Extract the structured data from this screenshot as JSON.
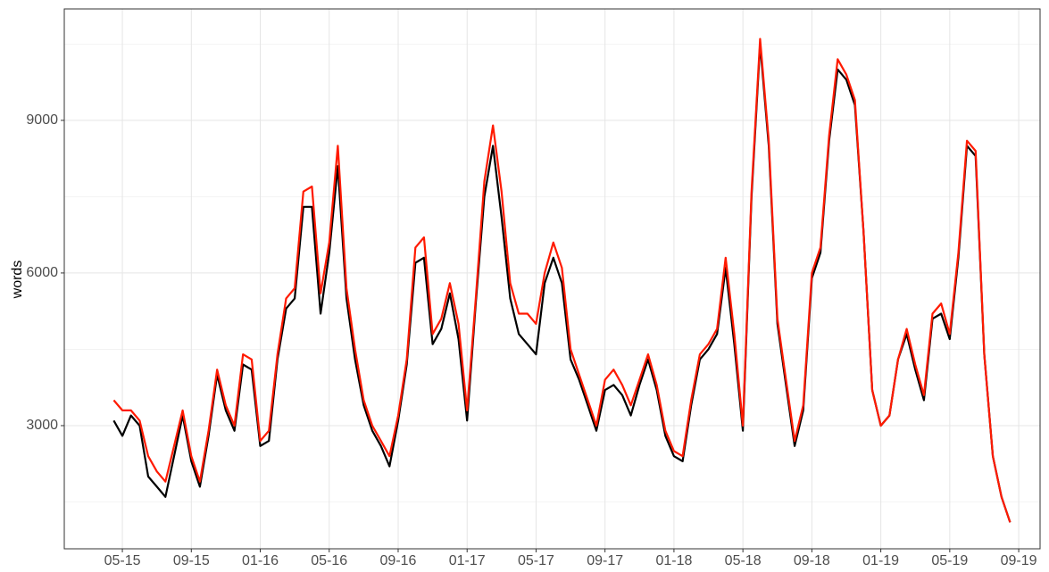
{
  "chart_data": {
    "type": "line",
    "y_label": "words",
    "categories": [
      null,
      "05-15",
      null,
      null,
      null,
      null,
      null,
      null,
      null,
      "09-15",
      null,
      null,
      null,
      null,
      null,
      null,
      null,
      "01-16",
      null,
      null,
      null,
      null,
      null,
      null,
      null,
      "05-16",
      null,
      null,
      null,
      null,
      null,
      null,
      null,
      "09-16",
      null,
      null,
      null,
      null,
      null,
      null,
      null,
      "01-17",
      null,
      null,
      null,
      null,
      null,
      null,
      null,
      "05-17",
      null,
      null,
      null,
      null,
      null,
      null,
      null,
      "09-17",
      null,
      null,
      null,
      null,
      null,
      null,
      null,
      "01-18",
      null,
      null,
      null,
      null,
      null,
      null,
      null,
      "05-18",
      null,
      null,
      null,
      null,
      null,
      null,
      null,
      "09-18",
      null,
      null,
      null,
      null,
      null,
      null,
      null,
      "01-19",
      null,
      null,
      null,
      null,
      null,
      null,
      null,
      "05-19",
      null,
      null,
      null,
      null,
      null,
      null,
      null,
      "09-19"
    ],
    "series": [
      {
        "color": "#000000",
        "values": [
          3100,
          2800,
          3200,
          3000,
          2000,
          1800,
          1600,
          2400,
          3200,
          2300,
          1800,
          2800,
          4000,
          3300,
          2900,
          4200,
          4100,
          2600,
          2700,
          4300,
          5300,
          5500,
          7300,
          7300,
          5200,
          6400,
          8100,
          5500,
          4300,
          3400,
          2900,
          2600,
          2200,
          3100,
          4200,
          6200,
          6300,
          4600,
          4900,
          5600,
          4700,
          3100,
          5400,
          7500,
          8500,
          7100,
          5500,
          4800,
          4600,
          4400,
          5800,
          6300,
          5800,
          4300,
          3900,
          3400,
          2900,
          3700,
          3800,
          3600,
          3200,
          3800,
          4300,
          3700,
          2800,
          2400,
          2300,
          3400,
          4300,
          4500,
          4800,
          6100,
          4600,
          2900,
          7500,
          10500,
          8500,
          5000,
          3800,
          2600,
          3300,
          5900,
          6400,
          8600,
          10000,
          9800,
          9300,
          6800,
          3700,
          3000,
          3200,
          4300,
          4800,
          4100,
          3500,
          5100,
          5200,
          4700,
          6300,
          8500,
          8300,
          4400,
          2400,
          1600,
          1100,
          null
        ]
      },
      {
        "color": "#ff1a00",
        "values": [
          3500,
          3300,
          3300,
          3100,
          2400,
          2100,
          1900,
          2600,
          3300,
          2400,
          1900,
          2900,
          4100,
          3400,
          3000,
          4400,
          4300,
          2700,
          2900,
          4400,
          5500,
          5700,
          7600,
          7700,
          5600,
          6600,
          8500,
          5700,
          4500,
          3500,
          3000,
          2700,
          2400,
          3200,
          4300,
          6500,
          6700,
          4800,
          5100,
          5800,
          5000,
          3300,
          5500,
          7800,
          8900,
          7600,
          5800,
          5200,
          5200,
          5000,
          6000,
          6600,
          6100,
          4500,
          4000,
          3500,
          3000,
          3900,
          4100,
          3800,
          3400,
          3900,
          4400,
          3800,
          2900,
          2500,
          2400,
          3500,
          4400,
          4600,
          4900,
          6300,
          4800,
          3000,
          7600,
          10600,
          8600,
          5100,
          3900,
          2700,
          3400,
          6000,
          6500,
          8700,
          10200,
          9900,
          9400,
          6800,
          3700,
          3000,
          3200,
          4300,
          4900,
          4200,
          3600,
          5200,
          5400,
          4800,
          6400,
          8600,
          8400,
          4400,
          2400,
          1600,
          1100,
          null
        ]
      }
    ],
    "ylim": [
      579,
      11190
    ],
    "yticks": [
      3000,
      6000,
      9000
    ],
    "y_minor_grid": [
      1500,
      4500,
      7500,
      10500
    ],
    "grid": true
  }
}
